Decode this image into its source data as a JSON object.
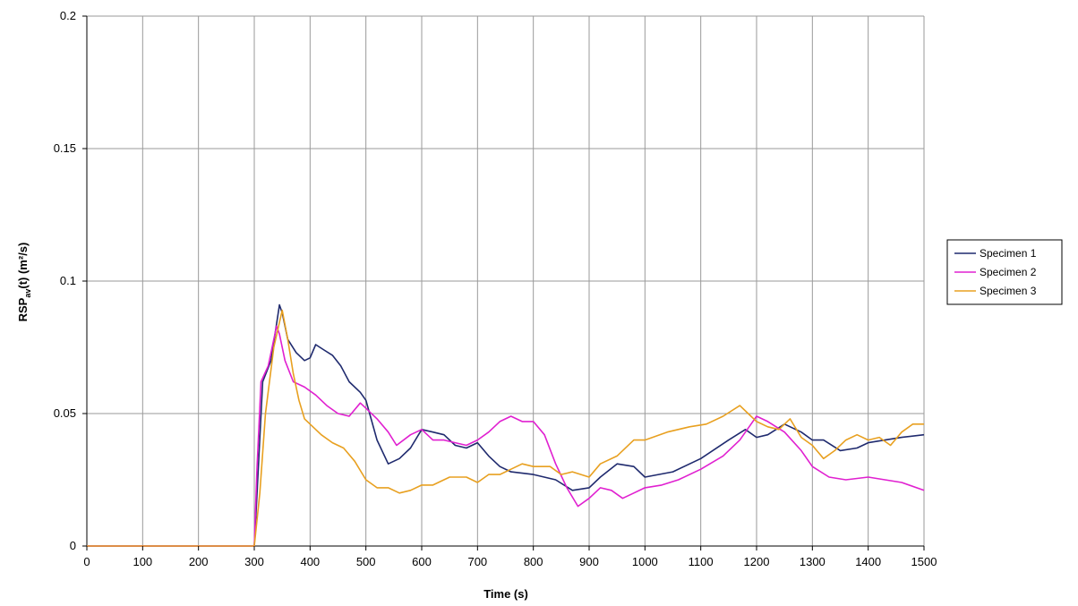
{
  "chart_data": {
    "type": "line",
    "xlabel": "Time (s)",
    "ylabel": {
      "main": "RSP",
      "sub": "av",
      "rest": "(t) (m²/s)"
    },
    "xlim": [
      0,
      1500
    ],
    "ylim": [
      0,
      0.2
    ],
    "xticks": [
      0,
      100,
      200,
      300,
      400,
      500,
      600,
      700,
      800,
      900,
      1000,
      1100,
      1200,
      1300,
      1400,
      1500
    ],
    "yticks": [
      0,
      0.05,
      0.1,
      0.15,
      0.2
    ],
    "xtick_labels": [
      "0",
      "100",
      "200",
      "300",
      "400",
      "500",
      "600",
      "700",
      "800",
      "900",
      "1000",
      "1100",
      "1200",
      "1300",
      "1400",
      "1500"
    ],
    "ytick_labels": [
      "0",
      "0.05",
      "0.1",
      "0.15",
      "0.2"
    ],
    "grid": true,
    "legend_position": "right",
    "series": [
      {
        "name": "Specimen 1",
        "color": "#1f2a6e",
        "points": [
          [
            0,
            0
          ],
          [
            300,
            0
          ],
          [
            305,
            0.02
          ],
          [
            315,
            0.062
          ],
          [
            330,
            0.07
          ],
          [
            345,
            0.091
          ],
          [
            350,
            0.088
          ],
          [
            360,
            0.078
          ],
          [
            375,
            0.073
          ],
          [
            390,
            0.07
          ],
          [
            400,
            0.071
          ],
          [
            410,
            0.076
          ],
          [
            425,
            0.074
          ],
          [
            440,
            0.072
          ],
          [
            455,
            0.068
          ],
          [
            470,
            0.062
          ],
          [
            490,
            0.058
          ],
          [
            500,
            0.055
          ],
          [
            520,
            0.04
          ],
          [
            540,
            0.031
          ],
          [
            560,
            0.033
          ],
          [
            580,
            0.037
          ],
          [
            600,
            0.044
          ],
          [
            620,
            0.043
          ],
          [
            640,
            0.042
          ],
          [
            660,
            0.038
          ],
          [
            680,
            0.037
          ],
          [
            700,
            0.039
          ],
          [
            720,
            0.034
          ],
          [
            740,
            0.03
          ],
          [
            760,
            0.028
          ],
          [
            800,
            0.027
          ],
          [
            840,
            0.025
          ],
          [
            870,
            0.021
          ],
          [
            900,
            0.022
          ],
          [
            920,
            0.026
          ],
          [
            950,
            0.031
          ],
          [
            980,
            0.03
          ],
          [
            1000,
            0.026
          ],
          [
            1050,
            0.028
          ],
          [
            1100,
            0.033
          ],
          [
            1150,
            0.04
          ],
          [
            1180,
            0.044
          ],
          [
            1200,
            0.041
          ],
          [
            1220,
            0.042
          ],
          [
            1250,
            0.046
          ],
          [
            1280,
            0.043
          ],
          [
            1300,
            0.04
          ],
          [
            1320,
            0.04
          ],
          [
            1350,
            0.036
          ],
          [
            1380,
            0.037
          ],
          [
            1400,
            0.039
          ],
          [
            1430,
            0.04
          ],
          [
            1460,
            0.041
          ],
          [
            1500,
            0.042
          ]
        ]
      },
      {
        "name": "Specimen 2",
        "color": "#e020d0",
        "points": [
          [
            0,
            0
          ],
          [
            300,
            0
          ],
          [
            305,
            0.03
          ],
          [
            312,
            0.062
          ],
          [
            325,
            0.068
          ],
          [
            340,
            0.083
          ],
          [
            345,
            0.08
          ],
          [
            355,
            0.07
          ],
          [
            370,
            0.062
          ],
          [
            390,
            0.06
          ],
          [
            410,
            0.057
          ],
          [
            430,
            0.053
          ],
          [
            450,
            0.05
          ],
          [
            470,
            0.049
          ],
          [
            490,
            0.054
          ],
          [
            500,
            0.052
          ],
          [
            520,
            0.048
          ],
          [
            540,
            0.043
          ],
          [
            555,
            0.038
          ],
          [
            580,
            0.042
          ],
          [
            600,
            0.044
          ],
          [
            620,
            0.04
          ],
          [
            640,
            0.04
          ],
          [
            660,
            0.039
          ],
          [
            680,
            0.038
          ],
          [
            700,
            0.04
          ],
          [
            720,
            0.043
          ],
          [
            740,
            0.047
          ],
          [
            760,
            0.049
          ],
          [
            780,
            0.047
          ],
          [
            800,
            0.047
          ],
          [
            820,
            0.042
          ],
          [
            840,
            0.031
          ],
          [
            860,
            0.022
          ],
          [
            880,
            0.015
          ],
          [
            900,
            0.018
          ],
          [
            920,
            0.022
          ],
          [
            940,
            0.021
          ],
          [
            960,
            0.018
          ],
          [
            980,
            0.02
          ],
          [
            1000,
            0.022
          ],
          [
            1030,
            0.023
          ],
          [
            1060,
            0.025
          ],
          [
            1100,
            0.029
          ],
          [
            1140,
            0.034
          ],
          [
            1170,
            0.04
          ],
          [
            1190,
            0.046
          ],
          [
            1200,
            0.049
          ],
          [
            1220,
            0.047
          ],
          [
            1250,
            0.043
          ],
          [
            1280,
            0.036
          ],
          [
            1300,
            0.03
          ],
          [
            1330,
            0.026
          ],
          [
            1360,
            0.025
          ],
          [
            1400,
            0.026
          ],
          [
            1430,
            0.025
          ],
          [
            1460,
            0.024
          ],
          [
            1500,
            0.021
          ]
        ]
      },
      {
        "name": "Specimen 3",
        "color": "#e8a020",
        "points": [
          [
            0,
            0
          ],
          [
            300,
            0
          ],
          [
            310,
            0.02
          ],
          [
            320,
            0.05
          ],
          [
            335,
            0.075
          ],
          [
            350,
            0.089
          ],
          [
            360,
            0.078
          ],
          [
            370,
            0.065
          ],
          [
            380,
            0.055
          ],
          [
            390,
            0.048
          ],
          [
            400,
            0.046
          ],
          [
            420,
            0.042
          ],
          [
            440,
            0.039
          ],
          [
            460,
            0.037
          ],
          [
            480,
            0.032
          ],
          [
            500,
            0.025
          ],
          [
            520,
            0.022
          ],
          [
            540,
            0.022
          ],
          [
            560,
            0.02
          ],
          [
            580,
            0.021
          ],
          [
            600,
            0.023
          ],
          [
            620,
            0.023
          ],
          [
            650,
            0.026
          ],
          [
            680,
            0.026
          ],
          [
            700,
            0.024
          ],
          [
            720,
            0.027
          ],
          [
            740,
            0.027
          ],
          [
            760,
            0.029
          ],
          [
            780,
            0.031
          ],
          [
            800,
            0.03
          ],
          [
            830,
            0.03
          ],
          [
            850,
            0.027
          ],
          [
            870,
            0.028
          ],
          [
            900,
            0.026
          ],
          [
            920,
            0.031
          ],
          [
            950,
            0.034
          ],
          [
            980,
            0.04
          ],
          [
            1000,
            0.04
          ],
          [
            1040,
            0.043
          ],
          [
            1080,
            0.045
          ],
          [
            1110,
            0.046
          ],
          [
            1140,
            0.049
          ],
          [
            1170,
            0.053
          ],
          [
            1185,
            0.05
          ],
          [
            1200,
            0.047
          ],
          [
            1220,
            0.045
          ],
          [
            1240,
            0.044
          ],
          [
            1260,
            0.048
          ],
          [
            1280,
            0.041
          ],
          [
            1300,
            0.038
          ],
          [
            1320,
            0.033
          ],
          [
            1340,
            0.036
          ],
          [
            1360,
            0.04
          ],
          [
            1380,
            0.042
          ],
          [
            1400,
            0.04
          ],
          [
            1420,
            0.041
          ],
          [
            1440,
            0.038
          ],
          [
            1460,
            0.043
          ],
          [
            1480,
            0.046
          ],
          [
            1500,
            0.046
          ]
        ]
      }
    ]
  }
}
